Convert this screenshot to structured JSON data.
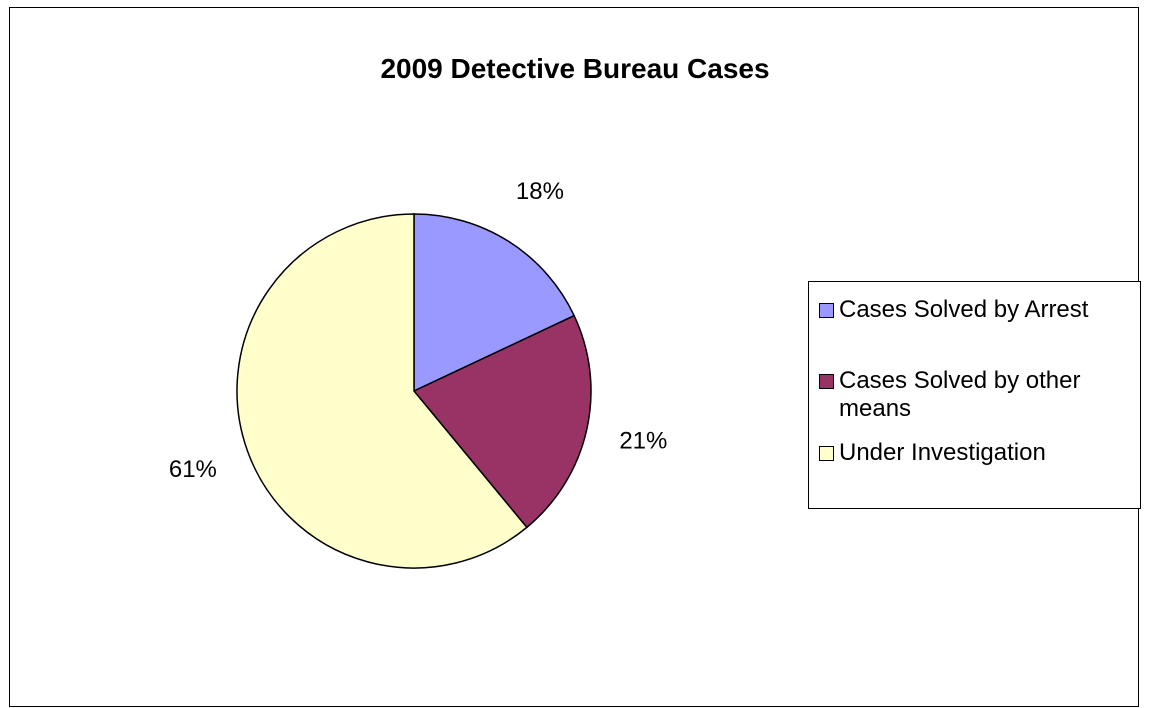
{
  "chart_data": {
    "type": "pie",
    "title": "2009 Detective Bureau Cases",
    "categories": [
      "Cases Solved by Arrest",
      "Cases Solved by other means",
      "Under Investigation"
    ],
    "values": [
      18,
      21,
      61
    ],
    "data_labels": [
      "18%",
      "21%",
      "61%"
    ],
    "colors": [
      "#9999FF",
      "#993366",
      "#FFFFCC"
    ],
    "legend_position": "right"
  }
}
